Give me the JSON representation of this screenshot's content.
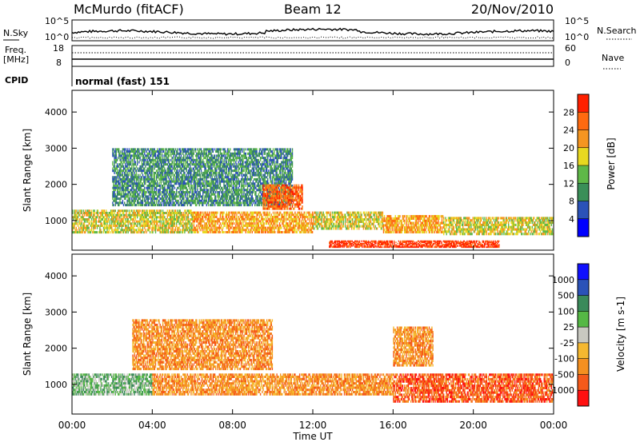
{
  "header": {
    "station": "McMurdo (fitACF)",
    "beam": "Beam 12",
    "date": "20/Nov/2010"
  },
  "top_panel": {
    "left_label": "N.Sky",
    "right_label": "N.Search",
    "y_top_tick": "10^5",
    "y_bottom_tick": "10^0"
  },
  "freq_panel": {
    "left_label_line1": "Freq.",
    "left_label_line2": "[MHz]",
    "left_ticks": [
      "18",
      "8"
    ],
    "right_label": "Nave",
    "right_ticks": [
      "60",
      "0"
    ]
  },
  "cpid": {
    "label": "CPID",
    "value": "normal (fast) 151"
  },
  "x_axis": {
    "title": "Time UT",
    "ticks": [
      "00:00",
      "04:00",
      "08:00",
      "12:00",
      "16:00",
      "20:00",
      "00:00"
    ]
  },
  "chart_data": [
    {
      "type": "heatmap",
      "name": "power",
      "ylabel": "Slant Range [km]",
      "yticks": [
        1000,
        2000,
        3000,
        4000
      ],
      "ylim": [
        180,
        4600
      ],
      "xlim_hours": [
        0,
        24
      ],
      "colorbar": {
        "label": "Power [dB]",
        "ticks": [
          "28",
          "24",
          "20",
          "16",
          "12",
          "8",
          "4"
        ],
        "colors": [
          "#0000ff",
          "#2b52b8",
          "#3a8f58",
          "#5fb848",
          "#e8d820",
          "#f59520",
          "#ff6a10",
          "#ff2000"
        ]
      },
      "bands": [
        {
          "t0": 0.0,
          "t1": 6.0,
          "r0": 650,
          "r1": 1300,
          "level": 4
        },
        {
          "t0": 6.0,
          "t1": 12.0,
          "r0": 650,
          "r1": 1250,
          "level": 5
        },
        {
          "t0": 12.0,
          "t1": 15.5,
          "r0": 750,
          "r1": 1250,
          "level": 4
        },
        {
          "t0": 15.5,
          "t1": 18.5,
          "r0": 650,
          "r1": 1150,
          "level": 5
        },
        {
          "t0": 18.5,
          "t1": 24.0,
          "r0": 600,
          "r1": 1100,
          "level": 4
        },
        {
          "t0": 12.8,
          "t1": 21.3,
          "r0": 250,
          "r1": 450,
          "level": 7
        },
        {
          "t0": 2.0,
          "t1": 11.0,
          "r0": 1400,
          "r1": 3000,
          "level": 2
        },
        {
          "t0": 9.5,
          "t1": 11.5,
          "r0": 1300,
          "r1": 2000,
          "level": 6
        }
      ]
    },
    {
      "type": "heatmap",
      "name": "velocity",
      "ylabel": "Slant Range [km]",
      "yticks": [
        1000,
        2000,
        3000,
        4000
      ],
      "ylim": [
        180,
        4600
      ],
      "xlim_hours": [
        0,
        24
      ],
      "colorbar": {
        "label": "Velocity [m s-1]",
        "ticks": [
          "1000",
          "500",
          "100",
          "25",
          "-25",
          "-100",
          "-500",
          "-1000"
        ],
        "colors": [
          "#ff1010",
          "#f55a1a",
          "#f59020",
          "#f5b830",
          "#c8c8c0",
          "#55b845",
          "#3a8a5a",
          "#2b52b8",
          "#1010ff"
        ]
      },
      "bands": [
        {
          "t0": 0.0,
          "t1": 4.0,
          "r0": 700,
          "r1": 1300,
          "level": 5
        },
        {
          "t0": 4.0,
          "t1": 12.0,
          "r0": 700,
          "r1": 1300,
          "level": 2
        },
        {
          "t0": 12.0,
          "t1": 16.0,
          "r0": 700,
          "r1": 1300,
          "level": 2
        },
        {
          "t0": 16.0,
          "t1": 24.0,
          "r0": 500,
          "r1": 1300,
          "level": 1
        },
        {
          "t0": 3.0,
          "t1": 10.0,
          "r0": 1400,
          "r1": 2800,
          "level": 2
        },
        {
          "t0": 16.0,
          "t1": 18.0,
          "r0": 1500,
          "r1": 2600,
          "level": 2
        }
      ]
    }
  ]
}
